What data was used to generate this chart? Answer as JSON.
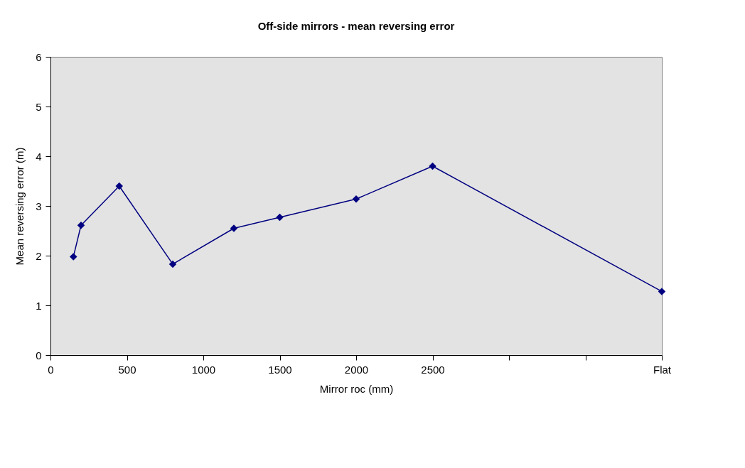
{
  "chart_data": {
    "type": "line",
    "title": "Off-side mirrors - mean reversing error",
    "xlabel": "Mirror roc (mm)",
    "ylabel": "Mean reversing error (m)",
    "x": [
      150,
      200,
      450,
      800,
      1200,
      1500,
      2000,
      2500,
      4000
    ],
    "series": [
      {
        "color": "#000080",
        "values": [
          1.98,
          2.61,
          3.4,
          1.83,
          2.55,
          2.77,
          3.14,
          3.8,
          1.28
        ]
      }
    ],
    "xlim": [
      0,
      4000
    ],
    "xticks": [
      0,
      500,
      1000,
      1500,
      2000,
      2500,
      {
        "value": 3000,
        "label": null
      },
      {
        "value": 3500,
        "label": null
      },
      {
        "value": 4000,
        "label": "Flat"
      }
    ],
    "ylim": [
      0,
      6
    ],
    "yticks": [
      0,
      1,
      2,
      3,
      4,
      5,
      6
    ],
    "grid": false,
    "marker": "diamond",
    "line_style": "solid"
  }
}
